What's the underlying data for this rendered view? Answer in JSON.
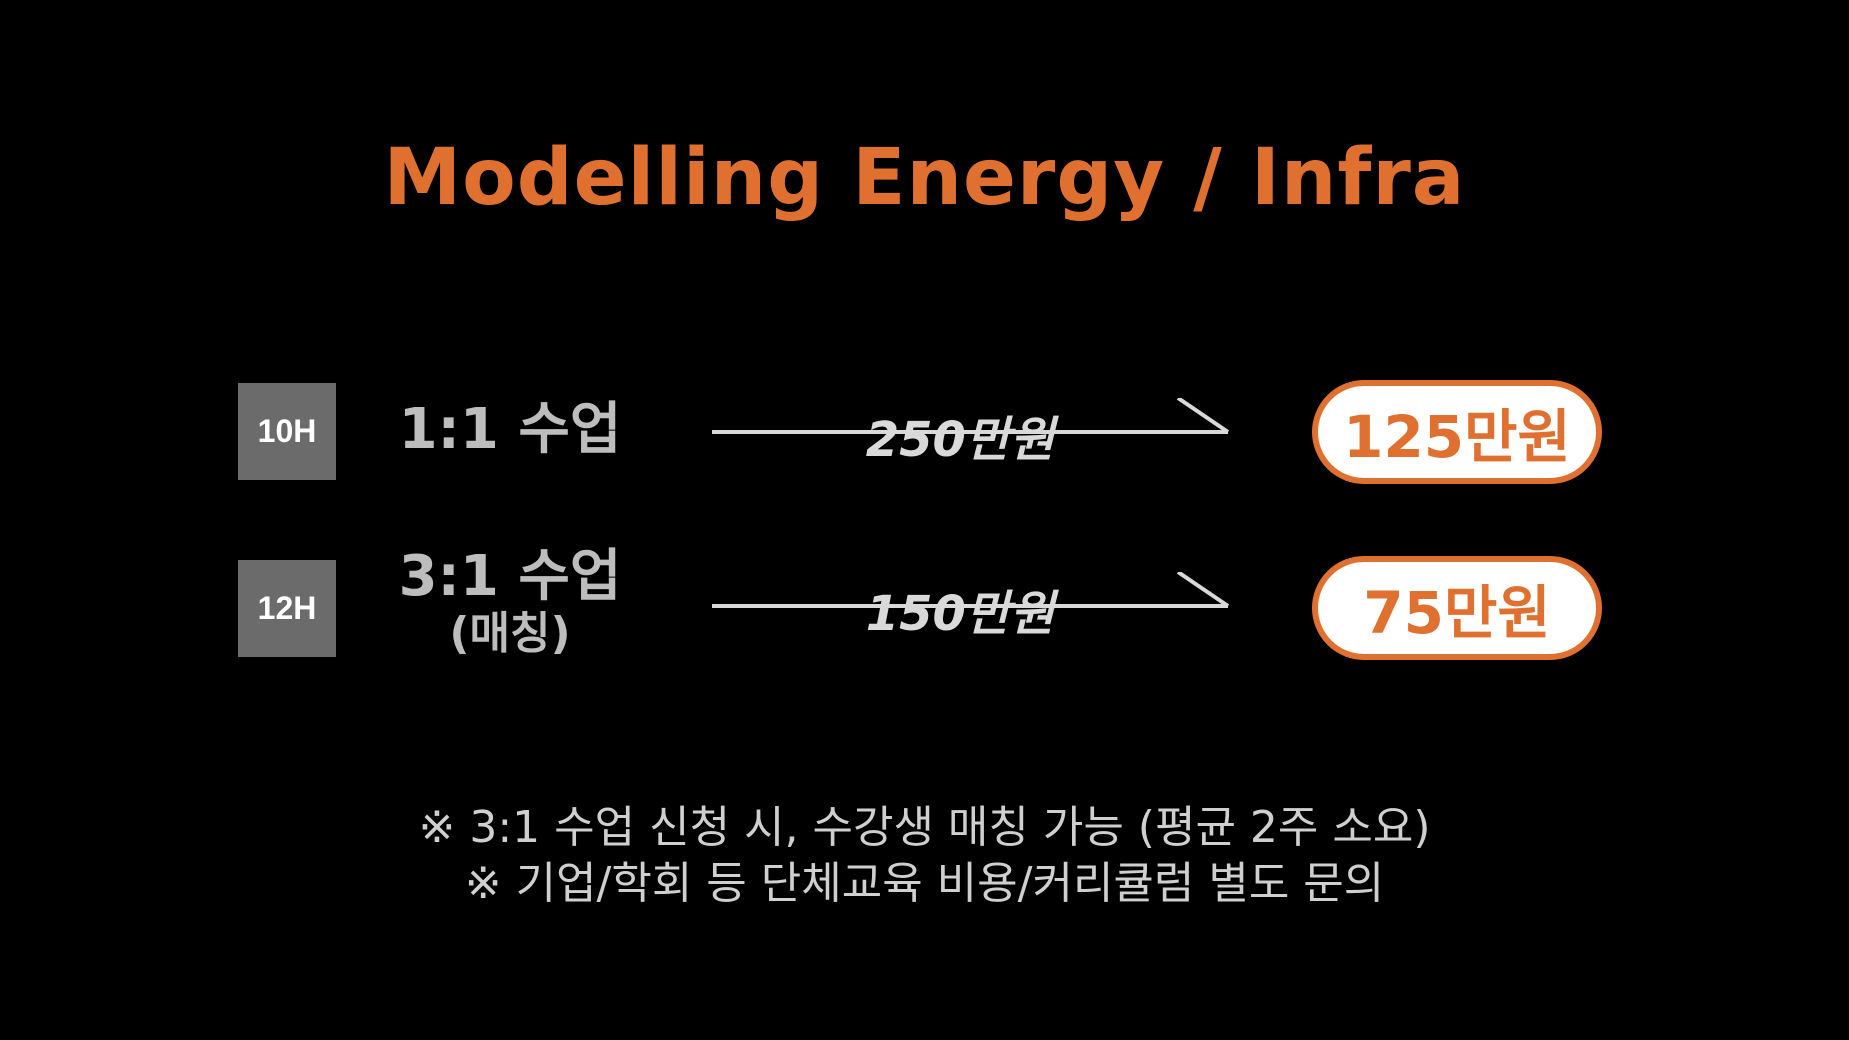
{
  "title": "Modelling Energy / Infra",
  "accent_color": "#E07030",
  "rows": [
    {
      "hours": "10H",
      "course": "1:1 수업",
      "course_sub": "",
      "old_price": "250만원",
      "new_price": "125만원"
    },
    {
      "hours": "12H",
      "course": "3:1 수업",
      "course_sub": "(매칭)",
      "old_price": "150만원",
      "new_price": "75만원"
    }
  ],
  "notes": [
    "※  3:1 수업 신청 시, 수강생 매칭 가능 (평균 2주 소요)",
    "※ 기업/학회 등 단체교육 비용/커리큘럼 별도 문의"
  ]
}
